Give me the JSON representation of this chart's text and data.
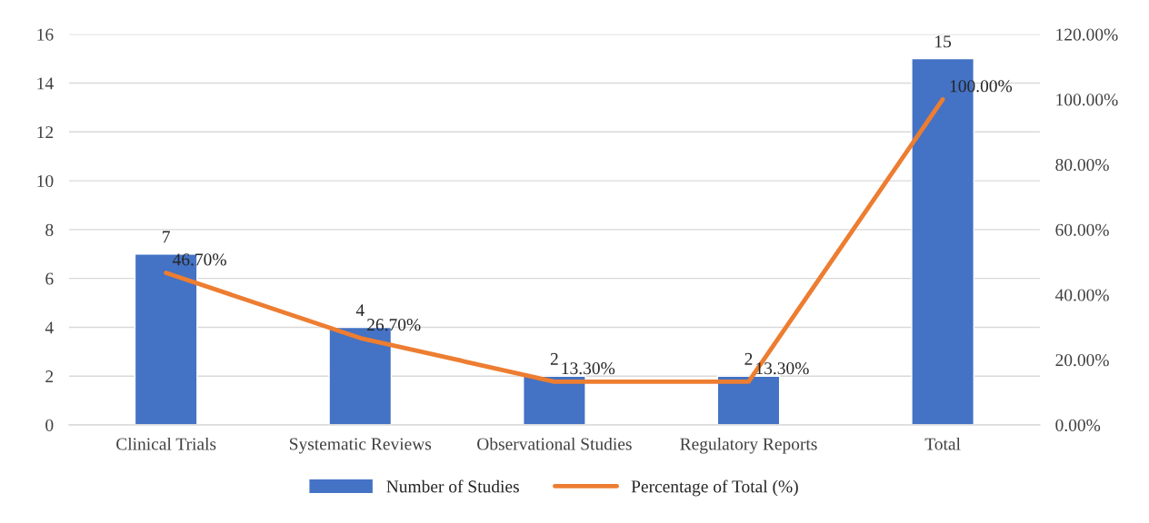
{
  "chart_data": {
    "type": "bar",
    "categories": [
      "Clinical Trials",
      "Systematic Reviews",
      "Observational Studies",
      "Regulatory Reports",
      "Total"
    ],
    "series": [
      {
        "name": "Number of Studies",
        "color": "#4472c4",
        "values": [
          7,
          4,
          2,
          2,
          15
        ],
        "value_labels": [
          "7",
          "4",
          "2",
          "2",
          "15"
        ]
      },
      {
        "name": "Percentage of Total (%)",
        "type": "line",
        "axis": "y2",
        "color": "#ed7d31",
        "values": [
          46.7,
          26.7,
          13.3,
          13.3,
          100
        ],
        "value_labels": [
          "46.70%",
          "26.70%",
          "13.30%",
          "13.30%",
          "100.00%"
        ]
      }
    ],
    "ylim": [
      0,
      16
    ],
    "yticks": [
      0,
      2,
      4,
      6,
      8,
      10,
      12,
      14,
      16
    ],
    "y2lim": [
      0,
      120
    ],
    "y2ticks": [
      {
        "value": 0,
        "label": "0.00%"
      },
      {
        "value": 20,
        "label": "20.00%"
      },
      {
        "value": 40,
        "label": "40.00%"
      },
      {
        "value": 60,
        "label": "60.00%"
      },
      {
        "value": 80,
        "label": "80.00%"
      },
      {
        "value": 100,
        "label": "100.00%"
      },
      {
        "value": 120,
        "label": "120.00%"
      }
    ],
    "grid": "y",
    "legend": "bottom",
    "marker": "none",
    "line_style": "solid"
  }
}
